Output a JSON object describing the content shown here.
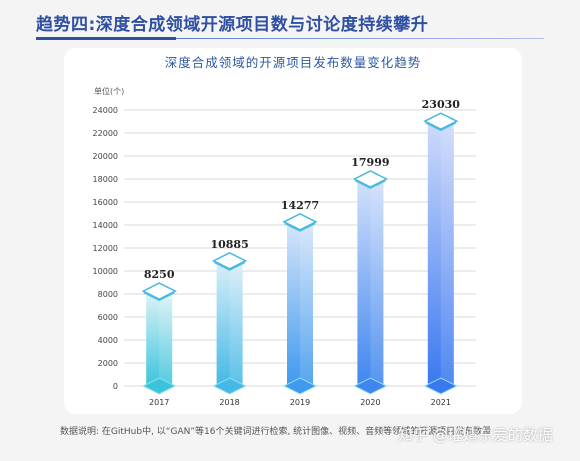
{
  "header": {
    "title": "趋势四:深度合成领域开源项目数与讨论度持续攀升"
  },
  "chart_data": {
    "type": "bar",
    "title": "深度合成领域的开源项目发布数量变化趋势",
    "ylabel": "单位(个)",
    "xlabel": "",
    "categories": [
      "2017",
      "2018",
      "2019",
      "2020",
      "2021"
    ],
    "values": [
      8250,
      10885,
      14277,
      17999,
      23030
    ],
    "value_labels": [
      "8250",
      "10885",
      "14277",
      "17999",
      "23030"
    ],
    "ylim": [
      0,
      24000
    ],
    "yticks": [
      0,
      2000,
      4000,
      6000,
      8000,
      10000,
      12000,
      14000,
      16000,
      18000,
      20000,
      22000,
      24000
    ],
    "ytick_labels": [
      "0",
      "2000",
      "4000",
      "6000",
      "8000",
      "10000",
      "12000",
      "14000",
      "16000",
      "18000",
      "20000",
      "22000",
      "24000"
    ],
    "grid": true,
    "colors": {
      "bars_top": [
        "#dff3f8",
        "#dbeef9",
        "#d6e6fb",
        "#d3e0fb",
        "#cfdafb"
      ],
      "bars_bottom": [
        "#3cc4dc",
        "#44b8e6",
        "#3f99ee",
        "#3f86ef",
        "#3a78f0"
      ],
      "diamond_edge": "#45b9dd",
      "grid": "#d9d9d9"
    }
  },
  "footnote": "数据说明: 在GitHub中, 以“GAN”等16个关键词进行检索, 统计图像、视频、音频等领域的开源项目发布数量",
  "watermark": "知乎 @瓘婧东爱的数据"
}
